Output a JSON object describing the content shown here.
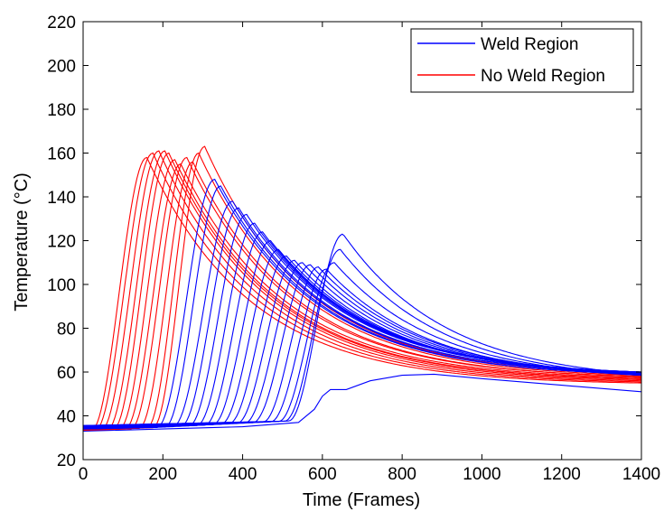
{
  "chart_data": {
    "type": "line",
    "xlabel": "Time (Frames)",
    "ylabel": "Temperature (°C)",
    "xlim": [
      0,
      1400
    ],
    "ylim": [
      20,
      220
    ],
    "xticks": [
      0,
      200,
      400,
      600,
      800,
      1000,
      1200,
      1400
    ],
    "yticks": [
      20,
      40,
      60,
      80,
      100,
      120,
      140,
      160,
      180,
      200,
      220
    ],
    "grid": false,
    "legend_position": "top-right",
    "legend": [
      {
        "label": "Weld Region",
        "color": "#0000ff"
      },
      {
        "label": "No Weld Region",
        "color": "#ff0000"
      }
    ],
    "series_groups": [
      {
        "name": "No Weld Region",
        "color": "#ff0000",
        "curves": [
          {
            "rise_start": 20,
            "peak_t": 160,
            "peak": 158,
            "tail": 55
          },
          {
            "rise_start": 30,
            "peak_t": 175,
            "peak": 160,
            "tail": 55.5
          },
          {
            "rise_start": 45,
            "peak_t": 190,
            "peak": 161,
            "tail": 56
          },
          {
            "rise_start": 60,
            "peak_t": 205,
            "peak": 161,
            "tail": 56.5
          },
          {
            "rise_start": 75,
            "peak_t": 215,
            "peak": 160,
            "tail": 57
          },
          {
            "rise_start": 90,
            "peak_t": 230,
            "peak": 157,
            "tail": 57
          },
          {
            "rise_start": 105,
            "peak_t": 245,
            "peak": 155,
            "tail": 57.5
          },
          {
            "rise_start": 120,
            "peak_t": 260,
            "peak": 158,
            "tail": 58
          },
          {
            "rise_start": 140,
            "peak_t": 275,
            "peak": 156,
            "tail": 58
          },
          {
            "rise_start": 160,
            "peak_t": 290,
            "peak": 160,
            "tail": 58.5
          },
          {
            "rise_start": 175,
            "peak_t": 305,
            "peak": 163,
            "tail": 59
          }
        ]
      },
      {
        "name": "Weld Region",
        "color": "#0000ff",
        "curves": [
          {
            "rise_start": 185,
            "peak_t": 330,
            "peak": 148,
            "tail": 59
          },
          {
            "rise_start": 205,
            "peak_t": 345,
            "peak": 145,
            "tail": 59
          },
          {
            "rise_start": 225,
            "peak_t": 375,
            "peak": 138,
            "tail": 59.5
          },
          {
            "rise_start": 245,
            "peak_t": 390,
            "peak": 135,
            "tail": 59.5
          },
          {
            "rise_start": 265,
            "peak_t": 410,
            "peak": 132,
            "tail": 60
          },
          {
            "rise_start": 285,
            "peak_t": 430,
            "peak": 128,
            "tail": 60
          },
          {
            "rise_start": 305,
            "peak_t": 450,
            "peak": 124,
            "tail": 60
          },
          {
            "rise_start": 325,
            "peak_t": 470,
            "peak": 120,
            "tail": 60
          },
          {
            "rise_start": 345,
            "peak_t": 490,
            "peak": 116,
            "tail": 59.5
          },
          {
            "rise_start": 365,
            "peak_t": 510,
            "peak": 113,
            "tail": 59.5
          },
          {
            "rise_start": 385,
            "peak_t": 530,
            "peak": 111,
            "tail": 59
          },
          {
            "rise_start": 405,
            "peak_t": 550,
            "peak": 110,
            "tail": 59
          },
          {
            "rise_start": 425,
            "peak_t": 570,
            "peak": 109,
            "tail": 59
          },
          {
            "rise_start": 450,
            "peak_t": 590,
            "peak": 108,
            "tail": 59
          },
          {
            "rise_start": 470,
            "peak_t": 610,
            "peak": 107,
            "tail": 58.5
          },
          {
            "rise_start": 490,
            "peak_t": 630,
            "peak": 110,
            "tail": 58.5
          },
          {
            "rise_start": 505,
            "peak_t": 645,
            "peak": 116,
            "tail": 58.5
          },
          {
            "rise_start": 515,
            "peak_t": 652,
            "peak": 123,
            "tail": 59
          }
        ],
        "outlier_curve": [
          [
            0,
            33
          ],
          [
            400,
            35
          ],
          [
            540,
            37
          ],
          [
            580,
            43
          ],
          [
            600,
            49
          ],
          [
            620,
            52
          ],
          [
            660,
            52
          ],
          [
            720,
            56
          ],
          [
            800,
            58.5
          ],
          [
            880,
            59
          ],
          [
            1000,
            57
          ],
          [
            1200,
            54
          ],
          [
            1400,
            51
          ]
        ]
      }
    ]
  }
}
